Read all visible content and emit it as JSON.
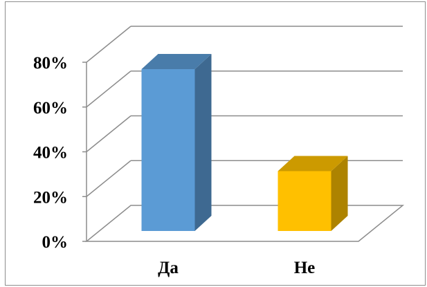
{
  "chart_data": {
    "type": "bar",
    "style": "3d-column",
    "title": "",
    "categories": [
      "Да",
      "Не"
    ],
    "values": [
      73,
      27
    ],
    "colors": [
      "#5b9bd5",
      "#ffc000"
    ],
    "ylim": [
      0,
      80
    ],
    "yticks": [
      "0%",
      "20%",
      "40%",
      "60%",
      "80%"
    ],
    "ytick_values": [
      0,
      20,
      40,
      60,
      80
    ],
    "grid": true,
    "legend": "none"
  }
}
